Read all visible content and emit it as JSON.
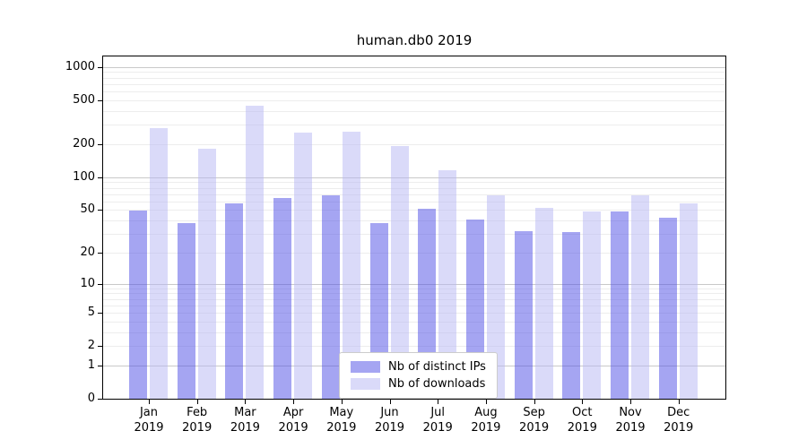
{
  "title": "human.db0 2019",
  "chart_data": {
    "type": "bar",
    "y_scale": "log10(1+v)",
    "categories": [
      "Jan",
      "Feb",
      "Mar",
      "Apr",
      "May",
      "Jun",
      "Jul",
      "Aug",
      "Sep",
      "Oct",
      "Nov",
      "Dec"
    ],
    "category_year": "2019",
    "series": [
      {
        "name": "Nb of distinct IPs",
        "key": "distinct-ips",
        "color": "rgba(75,75,230,0.5)",
        "values": [
          49,
          38,
          58,
          64,
          68,
          38,
          51,
          41,
          32,
          31,
          48,
          42
        ]
      },
      {
        "name": "Nb of downloads",
        "key": "downloads",
        "color": "rgba(182,182,243,0.5)",
        "values": [
          277,
          183,
          450,
          255,
          260,
          192,
          116,
          68,
          52,
          48,
          68,
          57
        ]
      }
    ],
    "y_ticks": [
      0,
      1,
      2,
      5,
      10,
      20,
      50,
      100,
      200,
      500,
      1000
    ],
    "ylim": [
      0,
      1250
    ],
    "grid": true,
    "legend_position": "lower-center"
  },
  "colors": {
    "background": "#ffffff",
    "frame": "#000000",
    "grid_major": "#c9c9c9",
    "grid_minor": "#ededed",
    "text": "#000000",
    "legend_border": "#cccccc",
    "legend_background": "#ffffff"
  }
}
